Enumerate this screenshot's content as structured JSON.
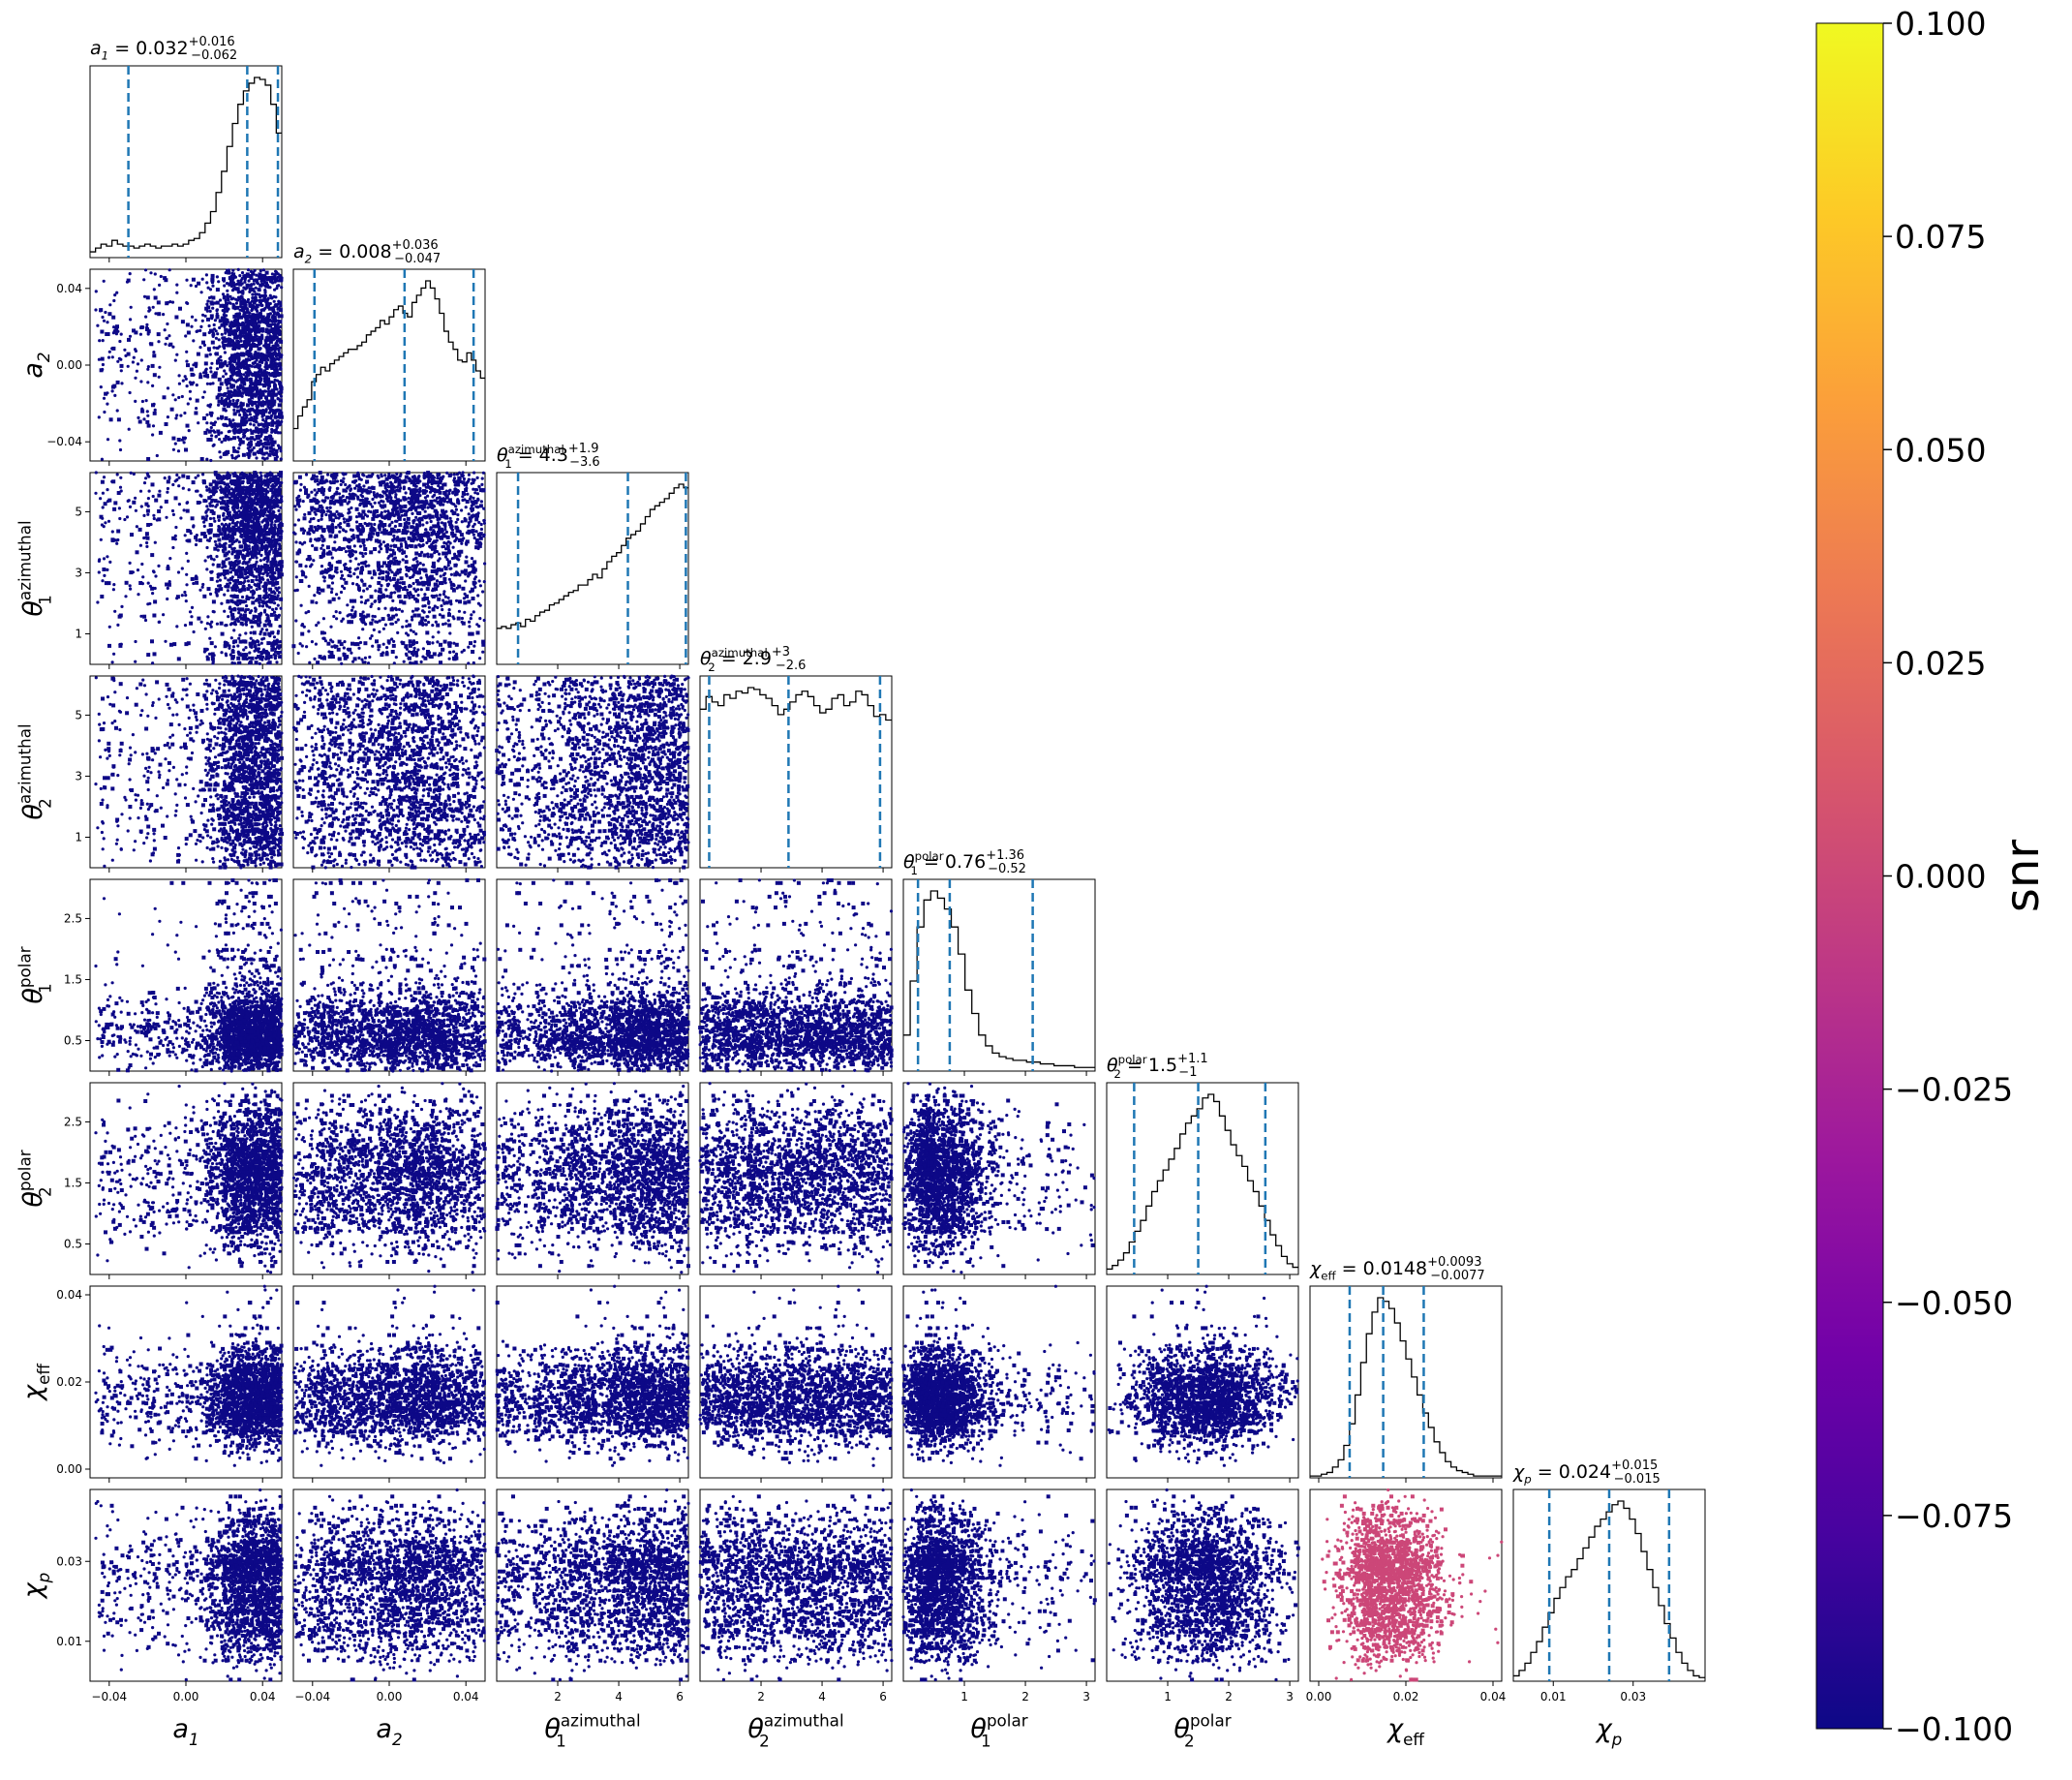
{
  "chart_data": {
    "type": "scatter",
    "subtype": "corner-plot",
    "parameters": [
      {
        "key": "a1",
        "sym": "a",
        "sub": "1",
        "sup": "",
        "ticks": [
          -0.04,
          0.0,
          0.04
        ],
        "tick_labels": [
          "−0.04",
          "0.00",
          "0.04"
        ],
        "range": [
          -0.05,
          0.05
        ],
        "title": {
          "value": "0.032",
          "plus": "+0.016",
          "minus": "−0.062"
        },
        "quantiles": [
          -0.03,
          0.032,
          0.048
        ]
      },
      {
        "key": "a2",
        "sym": "a",
        "sub": "2",
        "sup": "",
        "ticks": [
          -0.04,
          0.0,
          0.04
        ],
        "tick_labels": [
          "−0.04",
          "0.00",
          "0.04"
        ],
        "range": [
          -0.05,
          0.05
        ],
        "title": {
          "value": "0.008",
          "plus": "+0.036",
          "minus": "−0.047"
        },
        "quantiles": [
          -0.039,
          0.008,
          0.044
        ]
      },
      {
        "key": "theta1_az",
        "sym": "θ",
        "sub": "1",
        "sup": "azimuthal",
        "ticks": [
          1,
          3,
          5
        ],
        "tick_labels": [
          "1",
          "3",
          "5"
        ],
        "ticks_x": [
          2,
          4,
          6
        ],
        "tick_labels_x": [
          "2",
          "4",
          "6"
        ],
        "range": [
          0,
          6.283
        ],
        "title": {
          "value": "4.3",
          "plus": "+1.9",
          "minus": "−3.6"
        },
        "quantiles": [
          0.7,
          4.3,
          6.2
        ]
      },
      {
        "key": "theta2_az",
        "sym": "θ",
        "sub": "2",
        "sup": "azimuthal",
        "ticks": [
          1,
          3,
          5
        ],
        "tick_labels": [
          "1",
          "3",
          "5"
        ],
        "ticks_x": [
          2,
          4,
          6
        ],
        "tick_labels_x": [
          "2",
          "4",
          "6"
        ],
        "range": [
          0,
          6.283
        ],
        "title": {
          "value": "2.9",
          "plus": "+3",
          "minus": "−2.6"
        },
        "quantiles": [
          0.3,
          2.9,
          5.9
        ]
      },
      {
        "key": "theta1_pol",
        "sym": "θ",
        "sub": "1",
        "sup": "polar",
        "ticks": [
          0.5,
          1.5,
          2.5
        ],
        "tick_labels": [
          "0.5",
          "1.5",
          "2.5"
        ],
        "ticks_x": [
          1,
          2,
          3
        ],
        "tick_labels_x": [
          "1",
          "2",
          "3"
        ],
        "range": [
          0,
          3.1416
        ],
        "title": {
          "value": "0.76",
          "plus": "+1.36",
          "minus": "−0.52"
        },
        "quantiles": [
          0.24,
          0.76,
          2.12
        ]
      },
      {
        "key": "theta2_pol",
        "sym": "θ",
        "sub": "2",
        "sup": "polar",
        "ticks": [
          0.5,
          1.5,
          2.5
        ],
        "tick_labels": [
          "0.5",
          "1.5",
          "2.5"
        ],
        "ticks_x": [
          1,
          2,
          3
        ],
        "tick_labels_x": [
          "1",
          "2",
          "3"
        ],
        "range": [
          0,
          3.1416
        ],
        "title": {
          "value": "1.5",
          "plus": "+1.1",
          "minus": "−1"
        },
        "quantiles": [
          0.45,
          1.5,
          2.6
        ]
      },
      {
        "key": "chi_eff",
        "sym": "χ",
        "sub": "eff",
        "sup": "",
        "ticks": [
          0.0,
          0.02,
          0.04
        ],
        "tick_labels": [
          "0.00",
          "0.02",
          "0.04"
        ],
        "range": [
          -0.002,
          0.042
        ],
        "title": {
          "value": "0.0148",
          "plus": "+0.0093",
          "minus": "−0.0077"
        },
        "quantiles": [
          0.0071,
          0.0148,
          0.0241
        ]
      },
      {
        "key": "chi_p",
        "sym": "χ",
        "sub": "p",
        "sup": "",
        "ticks": [
          0.01,
          0.03
        ],
        "tick_labels": [
          "0.01",
          "0.03"
        ],
        "range": [
          0.0,
          0.048
        ],
        "title": {
          "value": "0.024",
          "plus": "+0.015",
          "minus": "−0.015"
        },
        "quantiles": [
          0.009,
          0.024,
          0.039
        ]
      }
    ],
    "histograms": {
      "a1": [
        3,
        5,
        7,
        6,
        9,
        7,
        6,
        6,
        5,
        6,
        7,
        6,
        5,
        6,
        6,
        7,
        6,
        7,
        9,
        10,
        13,
        18,
        24,
        34,
        45,
        58,
        70,
        80,
        87,
        91,
        94,
        93,
        90,
        80,
        65
      ],
      "a2": [
        18,
        25,
        30,
        34,
        44,
        48,
        52,
        50,
        54,
        56,
        58,
        60,
        62,
        62,
        64,
        66,
        70,
        72,
        74,
        78,
        76,
        80,
        84,
        86,
        82,
        80,
        88,
        92,
        96,
        100,
        96,
        90,
        82,
        72,
        66,
        62,
        56,
        55,
        60,
        56,
        50,
        46
      ],
      "theta1_az": [
        20,
        21,
        20,
        22,
        23,
        21,
        25,
        24,
        27,
        29,
        30,
        33,
        34,
        36,
        38,
        40,
        41,
        44,
        44,
        47,
        50,
        48,
        53,
        57,
        60,
        62,
        66,
        70,
        72,
        74,
        78,
        82,
        86,
        88,
        90,
        92,
        95,
        98,
        100,
        98
      ],
      "theta2_az": [
        88,
        95,
        92,
        90,
        96,
        94,
        98,
        97,
        100,
        99,
        96,
        94,
        90,
        85,
        88,
        92,
        96,
        98,
        95,
        90,
        86,
        88,
        94,
        96,
        90,
        92,
        98,
        96,
        90,
        84,
        85,
        82
      ],
      "theta1_pol": [
        20,
        50,
        80,
        95,
        100,
        96,
        90,
        80,
        65,
        45,
        32,
        20,
        14,
        10,
        8,
        7,
        6,
        6,
        5,
        5,
        4,
        4,
        3,
        3,
        3,
        2,
        2,
        2
      ],
      "theta2_pol": [
        3,
        5,
        8,
        12,
        18,
        24,
        30,
        38,
        46,
        52,
        58,
        64,
        70,
        78,
        84,
        88,
        92,
        98,
        100,
        96,
        88,
        80,
        72,
        66,
        60,
        52,
        46,
        38,
        30,
        22,
        16,
        10,
        6,
        4
      ],
      "chi_eff": [
        1,
        1,
        2,
        3,
        6,
        10,
        18,
        30,
        46,
        64,
        80,
        92,
        100,
        98,
        94,
        86,
        76,
        66,
        56,
        46,
        36,
        28,
        20,
        14,
        9,
        6,
        4,
        3,
        2,
        1,
        1,
        1,
        1,
        1
      ],
      "chi_p": [
        3,
        6,
        10,
        16,
        22,
        30,
        38,
        46,
        52,
        58,
        62,
        68,
        74,
        80,
        86,
        90,
        94,
        98,
        100,
        96,
        90,
        82,
        72,
        62,
        52,
        42,
        32,
        24,
        16,
        10,
        6,
        3,
        2
      ]
    },
    "scatter_color": "#0d0887",
    "highlight_panel": {
      "row": "chi_p",
      "col": "chi_eff",
      "color": "#cc4778"
    },
    "title_format": "{label} = {value}",
    "colorbar": {
      "label": "snr",
      "ticks": [
        "0.100",
        "0.075",
        "0.050",
        "0.025",
        "0.000",
        "−0.025",
        "−0.050",
        "−0.075",
        "−0.100"
      ],
      "colormap": "plasma",
      "range": [
        -0.1,
        0.1
      ],
      "stops": [
        "#0d0887",
        "#46039f",
        "#7201a8",
        "#9c179e",
        "#bd3786",
        "#d8576b",
        "#ed7953",
        "#fb9f3a",
        "#fdca26",
        "#f0f921"
      ]
    }
  }
}
